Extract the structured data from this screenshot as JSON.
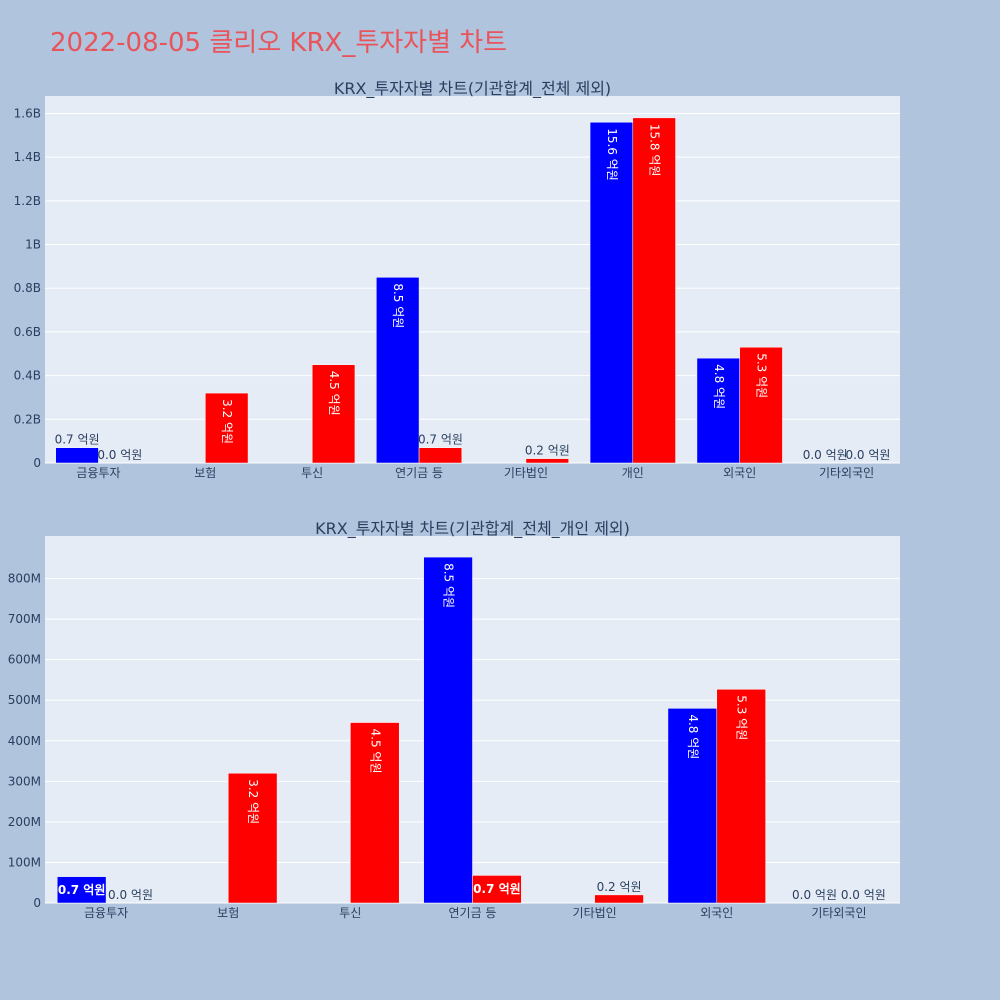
{
  "page": {
    "title": "2022-08-05 클리오 KRX_투자자별 차트"
  },
  "colors": {
    "background": "#b0c4de",
    "plot_bg": "#e5ecf6",
    "title": "#e8545a",
    "series_buy": "#0000ff",
    "series_sell": "#ff0000",
    "text": "#2a3f5f"
  },
  "chart_data": [
    {
      "type": "bar",
      "title": "KRX_투자자별 차트(기관합계_전체 제외)",
      "categories": [
        "금융투자",
        "보험",
        "투신",
        "연기금 등",
        "기타법인",
        "개인",
        "외국인",
        "기타외국인"
      ],
      "yticks": [
        0,
        200000000,
        400000000,
        600000000,
        800000000,
        1000000000,
        1200000000,
        1400000000,
        1600000000
      ],
      "ytick_labels": [
        "0",
        "0.2B",
        "0.4B",
        "0.6B",
        "0.8B",
        "1B",
        "1.2B",
        "1.4B",
        "1.6B"
      ],
      "ylim": [
        0,
        1680000000
      ],
      "grid": true,
      "series": [
        {
          "values": [
            70000000,
            0,
            0,
            850000000,
            0,
            1560000000,
            480000000,
            0
          ],
          "labels": [
            "0.7 억원",
            "",
            "",
            "8.5 억원",
            "",
            "15.6 억원",
            "4.8 억원",
            "0.0 억원"
          ]
        },
        {
          "values": [
            0,
            320000000,
            450000000,
            70000000,
            20000000,
            1580000000,
            530000000,
            0
          ],
          "labels": [
            "0.0 억원",
            "3.2 억원",
            "4.5 억원",
            "0.7 억원",
            "0.2 억원",
            "15.8 억원",
            "5.3 억원",
            "0.0 억원"
          ]
        }
      ]
    },
    {
      "type": "bar",
      "title": "KRX_투자자별 차트(기관합계_전체_개인 제외)",
      "categories": [
        "금융투자",
        "보험",
        "투신",
        "연기금 등",
        "기타법인",
        "외국인",
        "기타외국인"
      ],
      "yticks": [
        0,
        100000000,
        200000000,
        300000000,
        400000000,
        500000000,
        600000000,
        700000000,
        800000000
      ],
      "ytick_labels": [
        "0",
        "100M",
        "200M",
        "300M",
        "400M",
        "500M",
        "600M",
        "700M",
        "800M"
      ],
      "ylim": [
        0,
        905000000
      ],
      "grid": true,
      "series": [
        {
          "values": [
            65000000,
            0,
            0,
            853000000,
            0,
            480000000,
            0
          ],
          "labels": [
            "0.7 억원",
            "",
            "",
            "8.5 억원",
            "",
            "4.8 억원",
            "0.0 억원"
          ]
        },
        {
          "values": [
            0,
            320000000,
            445000000,
            68000000,
            20000000,
            527000000,
            0
          ],
          "labels": [
            "0.0 억원",
            "3.2 억원",
            "4.5 억원",
            "0.7 억원",
            "0.2 억원",
            "5.3 억원",
            "0.0 억원"
          ]
        }
      ]
    }
  ]
}
